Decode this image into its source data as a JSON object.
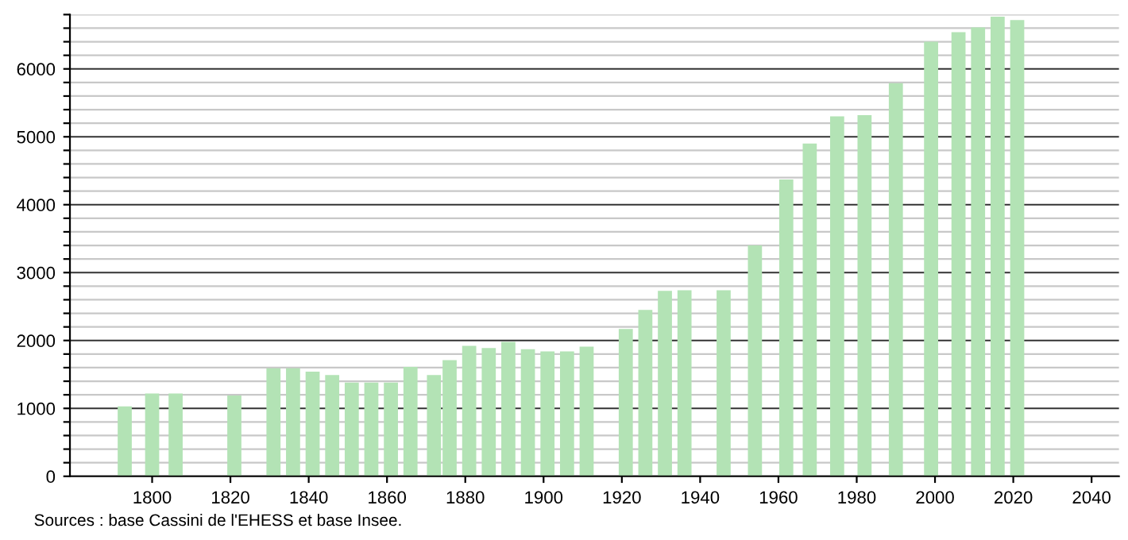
{
  "chart_data": {
    "type": "bar",
    "x": [
      1793,
      1800,
      1806,
      1821,
      1831,
      1836,
      1841,
      1846,
      1851,
      1856,
      1861,
      1866,
      1872,
      1876,
      1881,
      1886,
      1891,
      1896,
      1901,
      1906,
      1911,
      1921,
      1926,
      1931,
      1936,
      1946,
      1954,
      1962,
      1968,
      1975,
      1982,
      1990,
      1999,
      2006,
      2011,
      2016,
      2021
    ],
    "values": [
      1030,
      1220,
      1220,
      1190,
      1590,
      1590,
      1540,
      1490,
      1380,
      1380,
      1380,
      1610,
      1490,
      1710,
      1920,
      1890,
      1980,
      1870,
      1840,
      1840,
      1910,
      2170,
      2450,
      2730,
      2740,
      2740,
      3400,
      4370,
      4900,
      5300,
      5320,
      5790,
      6400,
      6540,
      6610,
      6770,
      6720
    ],
    "color": "#b3e3b5",
    "xlim": [
      1779,
      2047
    ],
    "xticks": [
      1800,
      1820,
      1840,
      1860,
      1880,
      1900,
      1920,
      1940,
      1960,
      1980,
      2000,
      2020,
      2040
    ],
    "ylim": [
      0,
      6800
    ],
    "yticks": [
      0,
      {
        "value": 200,
        "label": null
      },
      {
        "value": 400,
        "label": null
      },
      {
        "value": 600,
        "label": null
      },
      {
        "value": 800,
        "label": null
      },
      1000,
      {
        "value": 1200,
        "label": null
      },
      {
        "value": 1400,
        "label": null
      },
      {
        "value": 1600,
        "label": null
      },
      {
        "value": 1800,
        "label": null
      },
      2000,
      {
        "value": 2200,
        "label": null
      },
      {
        "value": 2400,
        "label": null
      },
      {
        "value": 2600,
        "label": null
      },
      {
        "value": 2800,
        "label": null
      },
      3000,
      {
        "value": 3200,
        "label": null
      },
      {
        "value": 3400,
        "label": null
      },
      {
        "value": 3600,
        "label": null
      },
      {
        "value": 3800,
        "label": null
      },
      4000,
      {
        "value": 4200,
        "label": null
      },
      {
        "value": 4400,
        "label": null
      },
      {
        "value": 4600,
        "label": null
      },
      {
        "value": 4800,
        "label": null
      },
      5000,
      {
        "value": 5200,
        "label": null
      },
      {
        "value": 5400,
        "label": null
      },
      {
        "value": 5600,
        "label": null
      },
      {
        "value": 5800,
        "label": null
      },
      6000,
      {
        "value": 6200,
        "label": null
      },
      {
        "value": 6400,
        "label": null
      },
      {
        "value": 6600,
        "label": null
      },
      {
        "value": 6800,
        "label": null
      }
    ],
    "grid": "y",
    "annotations": [
      "Sources : base Cassini de l'EHESS et base Insee."
    ]
  }
}
